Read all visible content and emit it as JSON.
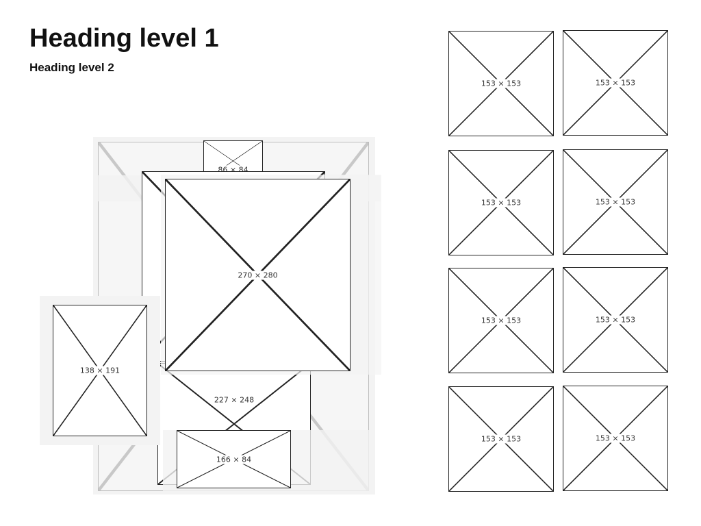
{
  "headings": {
    "h1": "Heading level 1",
    "h2": "Heading level 2"
  },
  "collage": {
    "background_label": "",
    "top_small_label": "86 × 84",
    "behind_label": "",
    "main_label": "270 × 280",
    "left_label": "138 × 191",
    "middle_label": "227 × 248",
    "bottom_label": "166 × 84"
  },
  "grid": {
    "tiles": [
      {
        "label": "153 × 153"
      },
      {
        "label": "153 × 153"
      },
      {
        "label": "153 × 153"
      },
      {
        "label": "153 × 153"
      },
      {
        "label": "153 × 153"
      },
      {
        "label": "153 × 153"
      },
      {
        "label": "153 × 153"
      },
      {
        "label": "153 × 153"
      }
    ]
  }
}
